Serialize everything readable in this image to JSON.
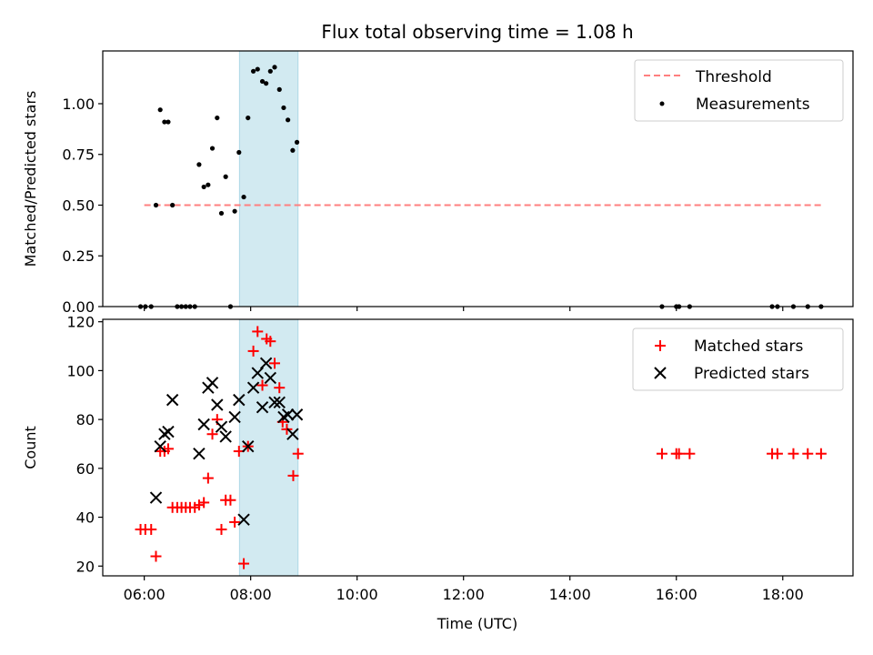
{
  "title": "Flux total observing time = 1.08 h",
  "colors": {
    "threshold": "#ff7f7f",
    "measurements": "#000000",
    "matched": "#ff0000",
    "predicted": "#000000",
    "span": "#add8e6"
  },
  "chart_data": [
    {
      "type": "scatter",
      "ylabel": "Matched/Predicted stars",
      "xlim": [
        5.22,
        19.32
      ],
      "ylim": [
        0,
        1.26
      ],
      "yticks": [
        "0.00",
        "0.25",
        "0.50",
        "0.75",
        "1.00"
      ],
      "ytick_values": [
        0,
        0.25,
        0.5,
        0.75,
        1.0
      ],
      "legend": {
        "placement": "top-right",
        "entries": [
          "Threshold",
          "Measurements"
        ]
      },
      "highlight_span": [
        7.79,
        8.89
      ],
      "threshold": {
        "name": "Threshold",
        "y": 0.5,
        "x": [
          6.0,
          18.75
        ],
        "style": "dashed"
      },
      "series": [
        {
          "name": "Measurements",
          "marker": "dot",
          "points": [
            [
              5.93,
              0
            ],
            [
              6.02,
              0
            ],
            [
              6.13,
              0
            ],
            [
              6.22,
              0.5
            ],
            [
              6.3,
              0.97
            ],
            [
              6.38,
              0.91
            ],
            [
              6.45,
              0.91
            ],
            [
              6.53,
              0.5
            ],
            [
              6.62,
              0
            ],
            [
              6.7,
              0
            ],
            [
              6.78,
              0
            ],
            [
              6.86,
              0
            ],
            [
              6.95,
              0
            ],
            [
              7.03,
              0.7
            ],
            [
              7.12,
              0.59
            ],
            [
              7.2,
              0.6
            ],
            [
              7.28,
              0.78
            ],
            [
              7.37,
              0.93
            ],
            [
              7.45,
              0.46
            ],
            [
              7.53,
              0.64
            ],
            [
              7.62,
              0
            ],
            [
              7.7,
              0.47
            ],
            [
              7.78,
              0.76
            ],
            [
              7.87,
              0.54
            ],
            [
              7.95,
              0.93
            ],
            [
              8.05,
              1.16
            ],
            [
              8.13,
              1.17
            ],
            [
              8.22,
              1.11
            ],
            [
              8.29,
              1.1
            ],
            [
              8.37,
              1.16
            ],
            [
              8.45,
              1.18
            ],
            [
              8.54,
              1.07
            ],
            [
              8.62,
              0.98
            ],
            [
              8.7,
              0.92
            ],
            [
              8.79,
              0.77
            ],
            [
              8.87,
              0.81
            ],
            [
              15.73,
              0
            ],
            [
              16.0,
              0
            ],
            [
              16.05,
              0
            ],
            [
              16.25,
              0
            ],
            [
              17.8,
              0
            ],
            [
              17.9,
              0
            ],
            [
              18.2,
              0
            ],
            [
              18.47,
              0
            ],
            [
              18.72,
              0
            ]
          ]
        }
      ]
    },
    {
      "type": "scatter",
      "ylabel": "Count",
      "xlabel": "Time (UTC)",
      "xlim": [
        5.22,
        19.32
      ],
      "ylim": [
        16,
        121
      ],
      "yticks": [
        "20",
        "40",
        "60",
        "80",
        "100",
        "120"
      ],
      "ytick_values": [
        20,
        40,
        60,
        80,
        100,
        120
      ],
      "xticks": [
        "06:00",
        "08:00",
        "10:00",
        "12:00",
        "14:00",
        "16:00",
        "18:00"
      ],
      "xtick_values": [
        6,
        8,
        10,
        12,
        14,
        16,
        18
      ],
      "legend": {
        "placement": "top-right",
        "entries": [
          "Matched stars",
          "Predicted stars"
        ]
      },
      "highlight_span": [
        7.79,
        8.89
      ],
      "series": [
        {
          "name": "Matched stars",
          "marker": "plus",
          "points": [
            [
              5.93,
              35
            ],
            [
              6.02,
              35
            ],
            [
              6.13,
              35
            ],
            [
              6.22,
              24
            ],
            [
              6.3,
              67
            ],
            [
              6.38,
              67
            ],
            [
              6.45,
              68
            ],
            [
              6.53,
              44
            ],
            [
              6.62,
              44
            ],
            [
              6.7,
              44
            ],
            [
              6.78,
              44
            ],
            [
              6.86,
              44
            ],
            [
              6.95,
              44
            ],
            [
              7.03,
              45
            ],
            [
              7.12,
              46
            ],
            [
              7.2,
              56
            ],
            [
              7.28,
              74
            ],
            [
              7.37,
              80
            ],
            [
              7.45,
              35
            ],
            [
              7.53,
              47
            ],
            [
              7.62,
              47
            ],
            [
              7.7,
              38
            ],
            [
              7.78,
              67
            ],
            [
              7.87,
              21
            ],
            [
              7.95,
              69
            ],
            [
              8.05,
              108
            ],
            [
              8.13,
              116
            ],
            [
              8.22,
              94
            ],
            [
              8.3,
              113
            ],
            [
              8.37,
              112
            ],
            [
              8.45,
              103
            ],
            [
              8.54,
              93
            ],
            [
              8.6,
              79
            ],
            [
              8.68,
              76
            ],
            [
              8.8,
              57
            ],
            [
              8.89,
              66
            ],
            [
              15.73,
              66
            ],
            [
              16.0,
              66
            ],
            [
              16.05,
              66
            ],
            [
              16.25,
              66
            ],
            [
              17.8,
              66
            ],
            [
              17.9,
              66
            ],
            [
              18.2,
              66
            ],
            [
              18.47,
              66
            ],
            [
              18.72,
              66
            ]
          ]
        },
        {
          "name": "Predicted stars",
          "marker": "x",
          "points": [
            [
              6.22,
              48
            ],
            [
              6.3,
              69
            ],
            [
              6.38,
              74
            ],
            [
              6.45,
              75
            ],
            [
              6.53,
              88
            ],
            [
              7.03,
              66
            ],
            [
              7.12,
              78
            ],
            [
              7.2,
              93
            ],
            [
              7.28,
              95
            ],
            [
              7.37,
              86
            ],
            [
              7.45,
              77
            ],
            [
              7.53,
              73
            ],
            [
              7.7,
              81
            ],
            [
              7.78,
              88
            ],
            [
              7.87,
              39
            ],
            [
              7.95,
              69
            ],
            [
              8.05,
              93
            ],
            [
              8.13,
              99
            ],
            [
              8.22,
              85
            ],
            [
              8.29,
              103
            ],
            [
              8.37,
              97
            ],
            [
              8.45,
              87
            ],
            [
              8.54,
              87
            ],
            [
              8.62,
              81
            ],
            [
              8.7,
              82
            ],
            [
              8.79,
              74
            ],
            [
              8.87,
              82
            ]
          ]
        }
      ]
    }
  ]
}
